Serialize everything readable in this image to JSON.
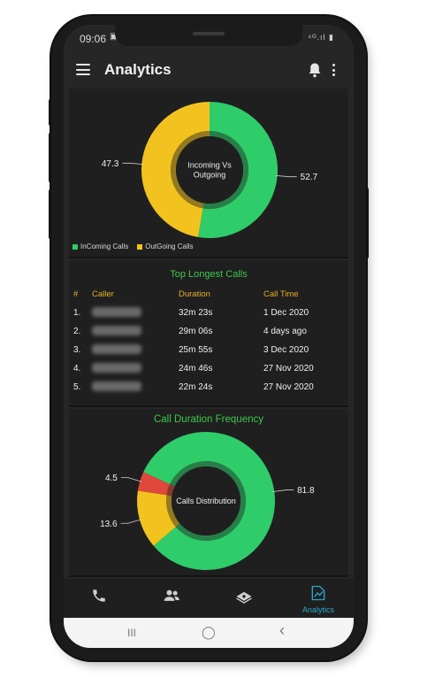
{
  "status": {
    "time": "09:06",
    "left_icons": "▣ ⋈",
    "right_icons": "⁴ᴳ.ıl ▮"
  },
  "appbar": {
    "title": "Analytics"
  },
  "chart_data": [
    {
      "type": "pie",
      "title": "",
      "center_label": [
        "Incoming Vs",
        "Outgoing"
      ],
      "categories": [
        "InComing Calls",
        "OutGoing Calls"
      ],
      "values": [
        52.7,
        47.3
      ],
      "colors": [
        "#2fcc6a",
        "#f2c31f"
      ],
      "value_labels": [
        "52.7",
        "47.3"
      ],
      "legend": "bottom-left"
    },
    {
      "type": "pie",
      "title": "Call Duration Frequency",
      "center_label": [
        "Calls Distribution"
      ],
      "categories": [
        "",
        "",
        ""
      ],
      "values": [
        81.8,
        13.6,
        4.5
      ],
      "colors": [
        "#2fcc6a",
        "#f2c31f",
        "#e0483c"
      ],
      "value_labels": [
        "81.8",
        "13.6",
        "4.5"
      ]
    }
  ],
  "table": {
    "title": "Top Longest Calls",
    "headers": [
      "#",
      "Caller",
      "Duration",
      "Call Time"
    ],
    "rows": [
      {
        "n": "1.",
        "duration": "32m 23s",
        "time": "1 Dec 2020"
      },
      {
        "n": "2.",
        "duration": "29m 06s",
        "time": "4 days ago"
      },
      {
        "n": "3.",
        "duration": "25m 55s",
        "time": "3 Dec 2020"
      },
      {
        "n": "4.",
        "duration": "24m 46s",
        "time": "27 Nov 2020"
      },
      {
        "n": "5.",
        "duration": "22m 24s",
        "time": "27 Nov 2020"
      }
    ]
  },
  "bottom_nav": {
    "items": [
      {
        "icon": "phone-icon",
        "label": ""
      },
      {
        "icon": "contacts-icon",
        "label": ""
      },
      {
        "icon": "money-icon",
        "label": ""
      },
      {
        "icon": "analytics-icon",
        "label": "Analytics",
        "active": true
      }
    ],
    "active_color": "#2aa7c9"
  },
  "system_nav": {
    "recents": "III",
    "home": "◯",
    "back": "‹"
  }
}
